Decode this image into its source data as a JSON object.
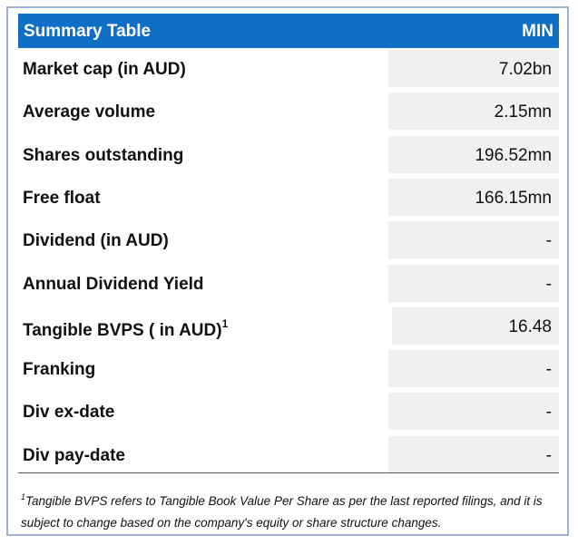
{
  "table": {
    "header": [
      "Summary Table",
      "MIN"
    ],
    "rows": [
      [
        "Market cap (in AUD)",
        "7.02bn"
      ],
      [
        "Average volume",
        "2.15mn"
      ],
      [
        "Shares outstanding",
        "196.52mn"
      ],
      [
        "Free float",
        "166.15mn"
      ],
      [
        "Dividend (in AUD)",
        "-"
      ],
      [
        "Annual Dividend Yield",
        "-"
      ],
      [
        "Tangible BVPS ( in AUD)",
        "16.48"
      ],
      [
        "Franking",
        "-"
      ],
      [
        "Div ex-date",
        "-"
      ],
      [
        "Div pay-date",
        "-"
      ]
    ]
  },
  "footnote": {
    "marker": "1",
    "text": "Tangible BVPS refers to Tangible Book Value Per Share as per the last reported filings, and it is subject to change based on the company's equity or share structure changes."
  }
}
